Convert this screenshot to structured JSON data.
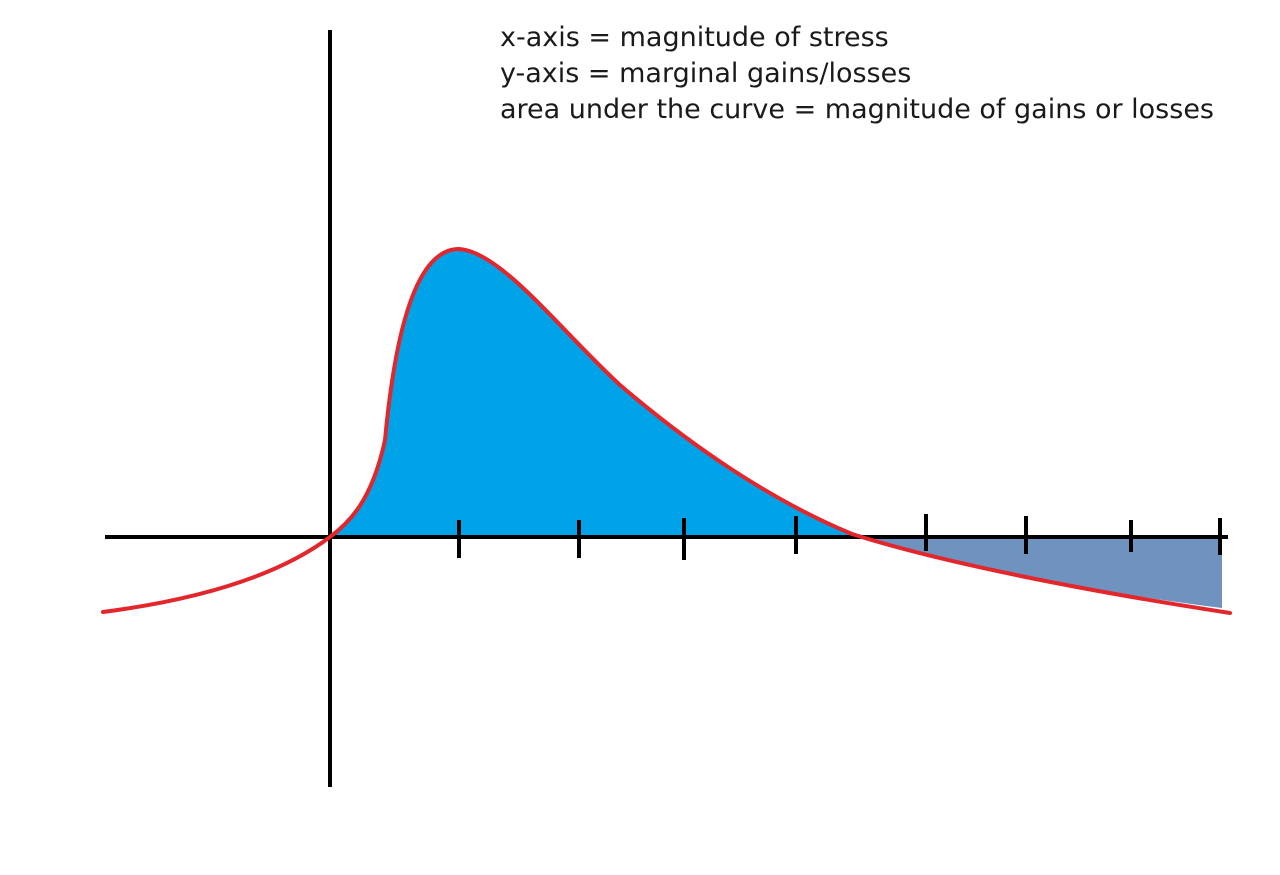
{
  "legend": {
    "x_axis": "x-axis = magnitude of stress",
    "y_axis": "y-axis = marginal gains/losses",
    "area": "area under the curve = magnitude of gains or losses"
  },
  "colors": {
    "background": "#ffffff",
    "axis": "#000000",
    "curve": "#e3262b",
    "gain_fill": "#00a2e8",
    "loss_fill": "#7092be",
    "text": "#1a1a1a"
  },
  "diagram": {
    "tick_count_positive_x": 8,
    "gain_region": "positive stress below crossover",
    "loss_region": "stress beyond crossover"
  }
}
